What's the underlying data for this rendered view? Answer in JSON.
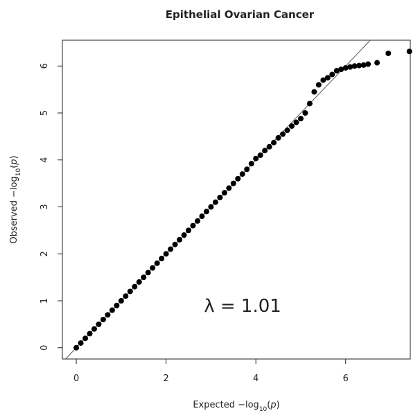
{
  "chart_data": {
    "type": "scatter",
    "title": "Epithelial Ovarian Cancer",
    "xlabel": [
      "Expected  −log",
      "10",
      "(",
      "p",
      ")"
    ],
    "ylabel": [
      "Observed  −log",
      "10",
      "(",
      "p",
      ")"
    ],
    "annotation": "λ = 1.01",
    "x": [
      0,
      0.1,
      0.2,
      0.3,
      0.4,
      0.5,
      0.6,
      0.7,
      0.8,
      0.9,
      1.0,
      1.1,
      1.2,
      1.3,
      1.4,
      1.5,
      1.6,
      1.7,
      1.8,
      1.9,
      2.0,
      2.1,
      2.2,
      2.3,
      2.4,
      2.5,
      2.6,
      2.7,
      2.8,
      2.9,
      3.0,
      3.1,
      3.2,
      3.3,
      3.4,
      3.5,
      3.6,
      3.7,
      3.8,
      3.9,
      4.0,
      4.1,
      4.2,
      4.3,
      4.4,
      4.5,
      4.6,
      4.7,
      4.8,
      4.9,
      5.0,
      5.1,
      5.2,
      5.3,
      5.4,
      5.5,
      5.6,
      5.7,
      5.8,
      5.9,
      6.0,
      6.1,
      6.2,
      6.3,
      6.4,
      6.5,
      6.7,
      6.95,
      7.42
    ],
    "values": [
      0,
      0.1,
      0.2,
      0.3,
      0.4,
      0.5,
      0.6,
      0.7,
      0.8,
      0.9,
      1.0,
      1.1,
      1.2,
      1.3,
      1.4,
      1.5,
      1.6,
      1.7,
      1.8,
      1.9,
      2.0,
      2.1,
      2.2,
      2.3,
      2.4,
      2.5,
      2.6,
      2.7,
      2.8,
      2.9,
      3.0,
      3.1,
      3.2,
      3.3,
      3.4,
      3.5,
      3.6,
      3.7,
      3.8,
      3.92,
      4.03,
      4.1,
      4.2,
      4.28,
      4.37,
      4.47,
      4.55,
      4.63,
      4.72,
      4.8,
      4.88,
      5.0,
      5.2,
      5.45,
      5.6,
      5.7,
      5.75,
      5.82,
      5.9,
      5.93,
      5.96,
      5.98,
      6.0,
      6.01,
      6.02,
      6.04,
      6.07,
      6.27,
      6.31
    ],
    "color": "#000000",
    "xlim": [
      -0.31,
      7.44
    ],
    "ylim": [
      -0.24,
      6.55
    ],
    "xticks": [
      0,
      2,
      4,
      6
    ],
    "yticks": [
      0,
      1,
      2,
      3,
      4,
      5,
      6
    ]
  }
}
